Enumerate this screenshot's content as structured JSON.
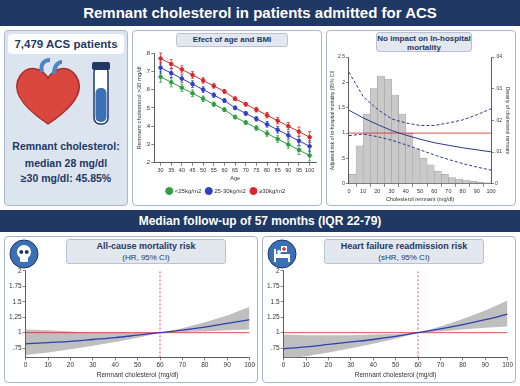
{
  "title": "Remnant cholesterol in patients admitted for ACS",
  "summary": {
    "patients": "7,479 ACS patients",
    "label": "Remnant cholesterol:",
    "lines": [
      "median 28 mg/dl",
      "≥30 mg/dl: 45.85%"
    ]
  },
  "band": "Median follow-up of 57 months (IQR 22-79)",
  "chart_data": [
    {
      "type": "line",
      "title": "Efect of age and BMI",
      "x_label": "Age",
      "y_label": "Remnant cholesterol >30 mg/dl",
      "x": [
        30,
        35,
        40,
        45,
        50,
        55,
        60,
        65,
        70,
        75,
        80,
        85,
        90,
        95,
        100
      ],
      "series": [
        {
          "name": "<25kg/m2",
          "color": "#2e9e3e",
          "values": [
            0.67,
            0.64,
            0.61,
            0.58,
            0.55,
            0.52,
            0.49,
            0.45,
            0.42,
            0.39,
            0.36,
            0.33,
            0.3,
            0.27,
            0.24
          ],
          "errors": [
            0.03,
            0.025,
            0.02,
            0.018,
            0.015,
            0.012,
            0.01,
            0.01,
            0.01,
            0.012,
            0.015,
            0.018,
            0.02,
            0.025,
            0.03
          ]
        },
        {
          "name": "25-30kg/m2",
          "color": "#2f3fc9",
          "values": [
            0.72,
            0.69,
            0.66,
            0.63,
            0.6,
            0.57,
            0.54,
            0.5,
            0.47,
            0.44,
            0.41,
            0.38,
            0.35,
            0.32,
            0.29
          ],
          "errors": [
            0.03,
            0.025,
            0.02,
            0.018,
            0.015,
            0.012,
            0.01,
            0.01,
            0.01,
            0.012,
            0.015,
            0.018,
            0.02,
            0.025,
            0.03
          ]
        },
        {
          "name": "≥30kg/m2",
          "color": "#d62828",
          "values": [
            0.77,
            0.74,
            0.71,
            0.68,
            0.65,
            0.62,
            0.59,
            0.55,
            0.52,
            0.49,
            0.46,
            0.43,
            0.4,
            0.37,
            0.34
          ],
          "errors": [
            0.03,
            0.025,
            0.02,
            0.018,
            0.015,
            0.012,
            0.01,
            0.01,
            0.01,
            0.012,
            0.015,
            0.018,
            0.02,
            0.025,
            0.03
          ]
        }
      ],
      "marker": "circle",
      "legend": "bottom",
      "grid": false,
      "xlim": [
        27,
        103
      ],
      "xticks": [
        30,
        35,
        40,
        45,
        50,
        55,
        60,
        65,
        70,
        75,
        80,
        85,
        90,
        95,
        100
      ],
      "ylim": [
        0.2,
        0.8
      ],
      "yticks": [
        {
          "value": 0.2,
          "label": ".2"
        },
        {
          "value": 0.3,
          "label": ".3"
        },
        {
          "value": 0.4,
          "label": ".4"
        },
        {
          "value": 0.5,
          "label": ".5"
        },
        {
          "value": 0.6,
          "label": ".6"
        },
        {
          "value": 0.7,
          "label": ".7"
        },
        {
          "value": 0.8,
          "label": ".8"
        }
      ]
    },
    {
      "type": "line",
      "title": "No impact on In-hospital mortality",
      "x_label": "Cholesterol remnant (mg/dl)",
      "y_label": "Adjusted risk of in-hospital mortality (95% CI)",
      "y2_label": "Density of cholesterol remnant",
      "x": [
        0,
        10,
        20,
        30,
        40,
        50,
        60,
        70,
        80,
        90,
        100
      ],
      "series": [
        {
          "type": "line",
          "line_style": "solid",
          "color": "#2b3990",
          "values": [
            1.45,
            1.3,
            1.17,
            1.05,
            0.96,
            0.88,
            0.81,
            0.76,
            0.71,
            0.67,
            0.63
          ]
        },
        {
          "type": "line",
          "line_style": "dashed",
          "color": "#2b3990",
          "values": [
            0.95,
            0.98,
            0.93,
            0.86,
            0.77,
            0.67,
            0.57,
            0.48,
            0.4,
            0.33,
            0.27
          ]
        },
        {
          "type": "line",
          "line_style": "dashed",
          "color": "#2b3990",
          "values": [
            2.2,
            1.72,
            1.47,
            1.28,
            1.2,
            1.15,
            1.15,
            1.2,
            1.26,
            1.36,
            1.48
          ]
        }
      ],
      "histogram": {
        "axis": "y2",
        "color": "#c9c9c9",
        "bins": [
          0,
          5,
          10,
          15,
          20,
          25,
          30,
          35,
          40,
          45,
          50,
          55,
          60,
          65,
          70,
          75,
          80,
          85,
          90,
          95,
          100
        ],
        "counts": [
          0.003,
          0.012,
          0.022,
          0.03,
          0.034,
          0.033,
          0.028,
          0.022,
          0.016,
          0.011,
          0.008,
          0.006,
          0.004,
          0.003,
          0.002,
          0.0015,
          0.001,
          0.0008,
          0.0005,
          0.0003
        ]
      },
      "reference_y": 1,
      "grid": false,
      "xlim": [
        0,
        100
      ],
      "xticks": [
        0,
        10,
        20,
        30,
        40,
        50,
        60,
        70,
        80,
        90,
        100
      ],
      "ylim": [
        0,
        2.5
      ],
      "yticks": [
        0,
        {
          "value": 0.5,
          "label": ".5"
        },
        1,
        1.5,
        2,
        2.5
      ],
      "y2lim": [
        0,
        0.04
      ],
      "y2ticks": [
        0,
        {
          "value": 0.01,
          "label": ".01"
        },
        {
          "value": 0.02,
          "label": ".02"
        },
        {
          "value": 0.03,
          "label": ".03"
        },
        {
          "value": 0.04,
          "label": ".04"
        }
      ]
    },
    {
      "type": "line",
      "title": "All-cause mortality risk",
      "subtitle": "(HR, 95% CI)",
      "x_label": "Remnant cholesterol (mg/dl)",
      "x": [
        0,
        10,
        20,
        30,
        40,
        50,
        60,
        70,
        80,
        90,
        100
      ],
      "series": [
        {
          "type": "area",
          "color": "#bfbfbf",
          "lower": [
            0.64,
            0.68,
            0.73,
            0.79,
            0.85,
            0.92,
            1.0,
            1.01,
            1.02,
            1.04,
            1.05
          ],
          "upper": [
            1.05,
            1.04,
            1.02,
            1.0,
            1.0,
            1.0,
            1.0,
            1.07,
            1.17,
            1.28,
            1.42
          ]
        },
        {
          "type": "line",
          "color": "#2e3fb0",
          "values": [
            0.82,
            0.84,
            0.86,
            0.89,
            0.92,
            0.96,
            1.0,
            1.04,
            1.09,
            1.15,
            1.21
          ]
        }
      ],
      "reference_x": 60,
      "reference_y": 1,
      "grid": false,
      "xlim": [
        0,
        100
      ],
      "xticks": [
        0,
        10,
        20,
        30,
        40,
        50,
        60,
        70,
        80,
        90,
        100
      ],
      "ylim": [
        0.6,
        2
      ],
      "yticks": [
        {
          "value": 0.75,
          "label": ".75"
        },
        1,
        1.25,
        1.5,
        1.75,
        2
      ]
    },
    {
      "type": "line",
      "title": "Heart failure readmission risk",
      "subtitle": "(sHR, 95% CI)",
      "x_label": "Remnant cholesterol (mg/dl)",
      "x": [
        0,
        10,
        20,
        30,
        40,
        50,
        60,
        70,
        80,
        90,
        100
      ],
      "series": [
        {
          "type": "area",
          "color": "#bfbfbf",
          "lower": [
            0.57,
            0.62,
            0.68,
            0.75,
            0.82,
            0.9,
            1.0,
            1.02,
            1.05,
            1.08,
            1.1
          ],
          "upper": [
            0.97,
            0.96,
            0.96,
            0.96,
            0.97,
            0.98,
            1.0,
            1.1,
            1.22,
            1.36,
            1.52
          ]
        },
        {
          "type": "line",
          "color": "#2e3fb0",
          "values": [
            0.74,
            0.77,
            0.81,
            0.85,
            0.89,
            0.94,
            1.0,
            1.06,
            1.13,
            1.21,
            1.3
          ]
        }
      ],
      "reference_x": 60,
      "reference_y": 1,
      "grid": false,
      "xlim": [
        0,
        100
      ],
      "xticks": [
        0,
        10,
        20,
        30,
        40,
        50,
        60,
        70,
        80,
        90,
        100
      ],
      "ylim": [
        0.6,
        2
      ],
      "yticks": [
        {
          "value": 0.75,
          "label": ".75"
        },
        1,
        1.25,
        1.5,
        1.75,
        2
      ]
    }
  ]
}
